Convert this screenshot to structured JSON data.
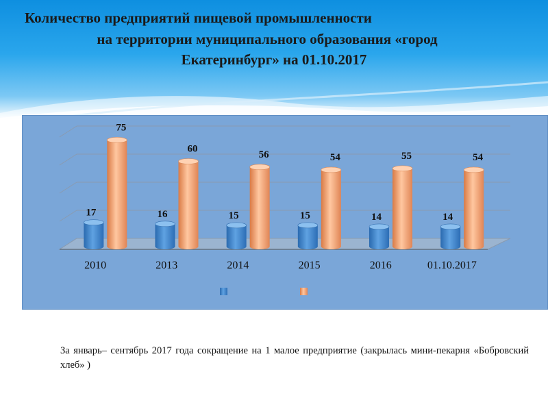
{
  "title": {
    "line1": "Количество предприятий пищевой промышленности",
    "line2": "на территории муниципального образования «город",
    "line3": "Екатеринбург» на 01.10.2017"
  },
  "colors": {
    "series_a": "#3f86cc",
    "series_b": "#f0a070",
    "panel": "#7aa6d8"
  },
  "chart_data": {
    "type": "bar",
    "categories": [
      "2010",
      "2013",
      "2014",
      "2015",
      "2016",
      "01.10.2017"
    ],
    "series": [
      {
        "values": [
          17,
          16,
          15,
          15,
          14,
          14
        ],
        "color": "#3f86cc"
      },
      {
        "values": [
          75,
          60,
          56,
          54,
          55,
          54
        ],
        "color": "#f0a070"
      }
    ],
    "ylim": [
      0,
      80
    ],
    "grid": true,
    "legend": "bottom"
  },
  "note": "За январь– сентябрь  2017 года сокращение на 1 малое предприятие (закрылась мини-пекарня «Бобровский хлеб» )"
}
